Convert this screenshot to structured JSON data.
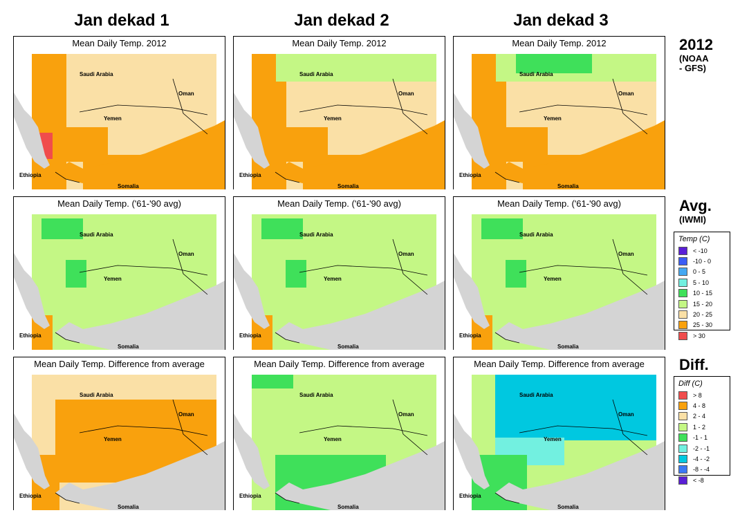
{
  "columns": [
    {
      "title": "Jan dekad 1"
    },
    {
      "title": "Jan dekad 2"
    },
    {
      "title": "Jan dekad 3"
    }
  ],
  "rows": [
    {
      "key": "2012",
      "title": "2012",
      "subtitle": [
        "(NOAA",
        "- GFS)"
      ],
      "panel_title": "Mean Daily Temp. 2012"
    },
    {
      "key": "avg",
      "title": "Avg.",
      "subtitle": [
        "(IWMI)"
      ],
      "panel_title": "Mean Daily Temp. ('61-'90 avg)"
    },
    {
      "key": "diff",
      "title": "Diff.",
      "subtitle": [],
      "panel_title": "Mean Daily Temp. Difference from average"
    }
  ],
  "map_labels": {
    "saudi": "Saudi Arabia",
    "oman": "Oman",
    "yemen": "Yemen",
    "ethiopia": "Ethiopia",
    "somalia": "Somalia"
  },
  "temp_legend": {
    "title": "Temp (C)",
    "items": [
      {
        "label": "< -10",
        "color": "#5a1fd6"
      },
      {
        "label": "-10 -  0",
        "color": "#3b5cf5"
      },
      {
        "label": "0 -  5",
        "color": "#45a8f2"
      },
      {
        "label": "5 - 10",
        "color": "#72f0e0"
      },
      {
        "label": "10 - 15",
        "color": "#3fe05a"
      },
      {
        "label": "15 - 20",
        "color": "#c4f785"
      },
      {
        "label": "20 - 25",
        "color": "#fae0a6"
      },
      {
        "label": "25 - 30",
        "color": "#f9a10d"
      },
      {
        "label": "> 30",
        "color": "#f04c4c"
      }
    ]
  },
  "diff_legend": {
    "title": "Diff (C)",
    "items": [
      {
        "label": "> 8",
        "color": "#f04c4c"
      },
      {
        "label": "4 -  8",
        "color": "#f9a10d"
      },
      {
        "label": "2 -  4",
        "color": "#fae0a6"
      },
      {
        "label": "1 -  2",
        "color": "#c4f785"
      },
      {
        "label": "-1 -  1",
        "color": "#3fe05a"
      },
      {
        "label": "-2 - -1",
        "color": "#72f0e0"
      },
      {
        "label": "-4 - -2",
        "color": "#00c8e0"
      },
      {
        "label": "-8 - -4",
        "color": "#3b78f5"
      },
      {
        "label": "< -8",
        "color": "#5a1fd6"
      }
    ]
  },
  "colors": {
    "sea": "#d4d4d4"
  }
}
